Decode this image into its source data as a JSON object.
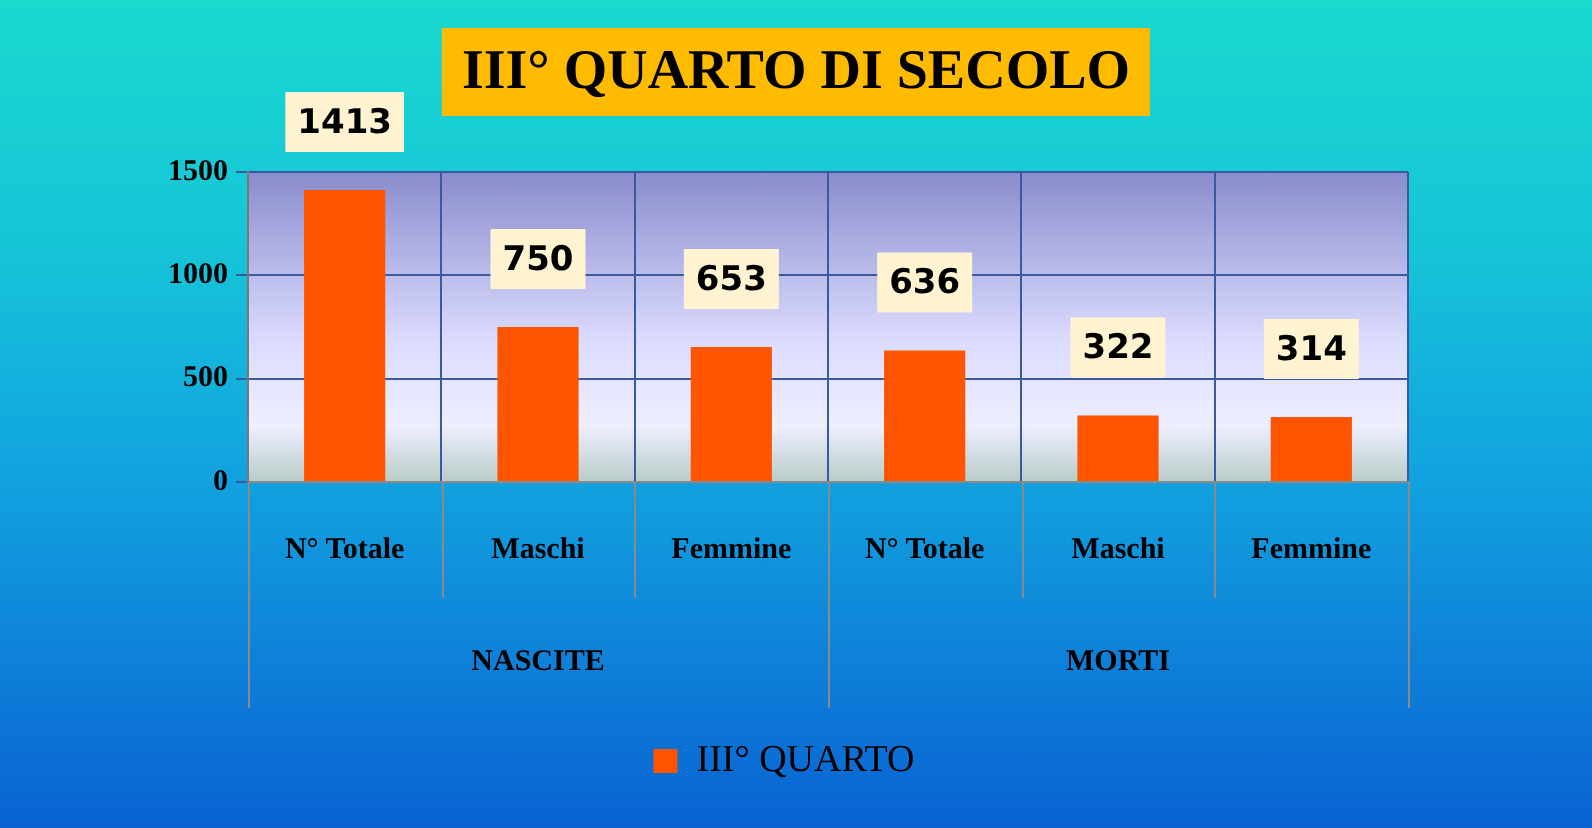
{
  "chart_data": {
    "type": "bar",
    "title": "III° QUARTO DI SECOLO",
    "categories": [
      "N° Totale",
      "Maschi",
      "Femmine",
      "N° Totale",
      "Maschi",
      "Femmine"
    ],
    "series": [
      {
        "name": "III° QUARTO",
        "color": "#ff5500",
        "values": [
          1413,
          750,
          653,
          636,
          322,
          314
        ]
      }
    ],
    "ylim": [
      0,
      1500
    ],
    "yticks": [
      0,
      500,
      1000,
      1500
    ],
    "grid": true,
    "legend": "bottom",
    "data_labels": true,
    "annotations": [
      "NASCITE",
      "MORTI"
    ]
  }
}
